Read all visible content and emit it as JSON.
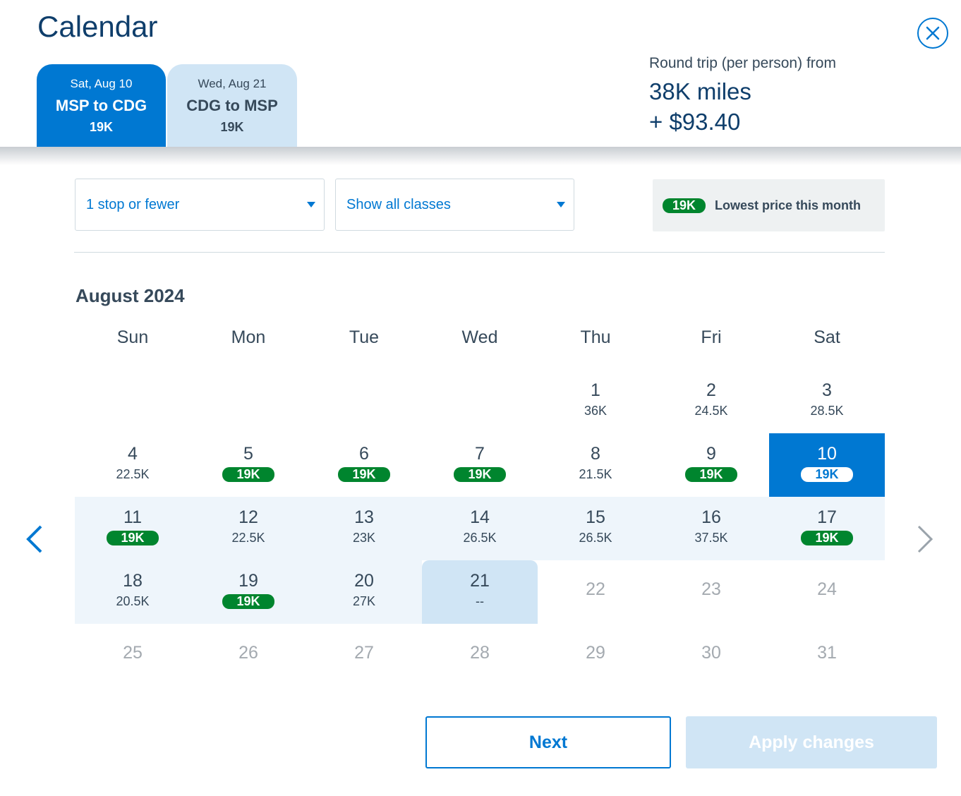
{
  "header": {
    "title": "Calendar",
    "tabs": [
      {
        "date": "Sat, Aug 10",
        "route": "MSP to CDG",
        "miles": "19K"
      },
      {
        "date": "Wed, Aug 21",
        "route": "CDG to MSP",
        "miles": "19K"
      }
    ],
    "price_label": "Round trip (per person) from",
    "price_miles": "38K miles",
    "price_cash": "+ $93.40"
  },
  "filters": {
    "stops": "1 stop or fewer",
    "classes": "Show all classes"
  },
  "legend": {
    "badge": "19K",
    "text": "Lowest price this month"
  },
  "calendar": {
    "month": "August 2024",
    "weekdays": [
      "Sun",
      "Mon",
      "Tue",
      "Wed",
      "Thu",
      "Fri",
      "Sat"
    ],
    "days": [
      {
        "day": "1",
        "price": "36K"
      },
      {
        "day": "2",
        "price": "24.5K"
      },
      {
        "day": "3",
        "price": "28.5K"
      },
      {
        "day": "4",
        "price": "22.5K"
      },
      {
        "day": "5",
        "price": "19K",
        "lowest": true
      },
      {
        "day": "6",
        "price": "19K",
        "lowest": true
      },
      {
        "day": "7",
        "price": "19K",
        "lowest": true
      },
      {
        "day": "8",
        "price": "21.5K"
      },
      {
        "day": "9",
        "price": "19K",
        "lowest": true
      },
      {
        "day": "10",
        "price": "19K",
        "lowest": true,
        "state": "selected"
      },
      {
        "day": "11",
        "price": "19K",
        "lowest": true,
        "state": "range"
      },
      {
        "day": "12",
        "price": "22.5K",
        "state": "range"
      },
      {
        "day": "13",
        "price": "23K",
        "state": "range"
      },
      {
        "day": "14",
        "price": "26.5K",
        "state": "range"
      },
      {
        "day": "15",
        "price": "26.5K",
        "state": "range"
      },
      {
        "day": "16",
        "price": "37.5K",
        "state": "range"
      },
      {
        "day": "17",
        "price": "19K",
        "lowest": true,
        "state": "range"
      },
      {
        "day": "18",
        "price": "20.5K",
        "state": "range"
      },
      {
        "day": "19",
        "price": "19K",
        "lowest": true,
        "state": "range"
      },
      {
        "day": "20",
        "price": "27K",
        "state": "range"
      },
      {
        "day": "21",
        "price": "--",
        "state": "return"
      },
      {
        "day": "22",
        "state": "disabled"
      },
      {
        "day": "23",
        "state": "disabled"
      },
      {
        "day": "24",
        "state": "disabled"
      },
      {
        "day": "25",
        "state": "disabled"
      },
      {
        "day": "26",
        "state": "disabled"
      },
      {
        "day": "27",
        "state": "disabled"
      },
      {
        "day": "28",
        "state": "disabled"
      },
      {
        "day": "29",
        "state": "disabled"
      },
      {
        "day": "30",
        "state": "disabled"
      },
      {
        "day": "31",
        "state": "disabled"
      }
    ]
  },
  "buttons": {
    "next": "Next",
    "apply": "Apply changes"
  },
  "icons": {
    "close": "close-icon",
    "prev": "chevron-left-icon",
    "next": "chevron-right-icon"
  },
  "colors": {
    "primary": "#0078d2",
    "lowest": "#00852e",
    "range": "#eef5fb",
    "return": "#d0e5f5"
  }
}
